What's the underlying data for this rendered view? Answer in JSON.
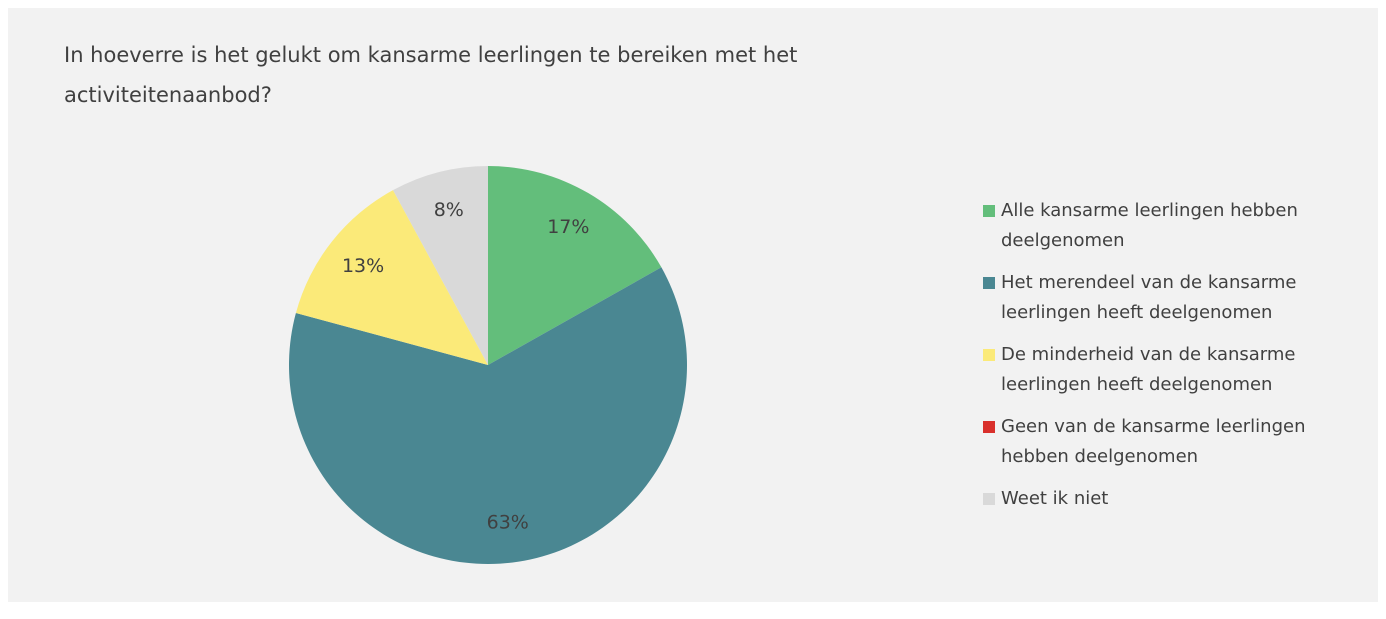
{
  "chart_data": {
    "type": "pie",
    "title": "In hoeverre is het gelukt om kansarme leerlingen te bereiken met het activiteitenaanbod?",
    "categories": [
      "Alle kansarme leerlingen hebben deelgenomen",
      "Het merendeel van de kansarme leerlingen heeft deelgenomen",
      "De minderheid van de kansarme leerlingen heeft deelgenomen",
      "Geen van de kansarme leerlingen hebben deelgenomen",
      "Weet ik niet"
    ],
    "values": [
      17,
      63,
      13,
      0,
      8
    ],
    "value_labels": [
      "17%",
      "63%",
      "13%",
      null,
      "8%"
    ],
    "colors": [
      "#63be7b",
      "#4a8792",
      "#fbea79",
      "#d9302c",
      "#d9d9d9"
    ],
    "legend": "right"
  }
}
